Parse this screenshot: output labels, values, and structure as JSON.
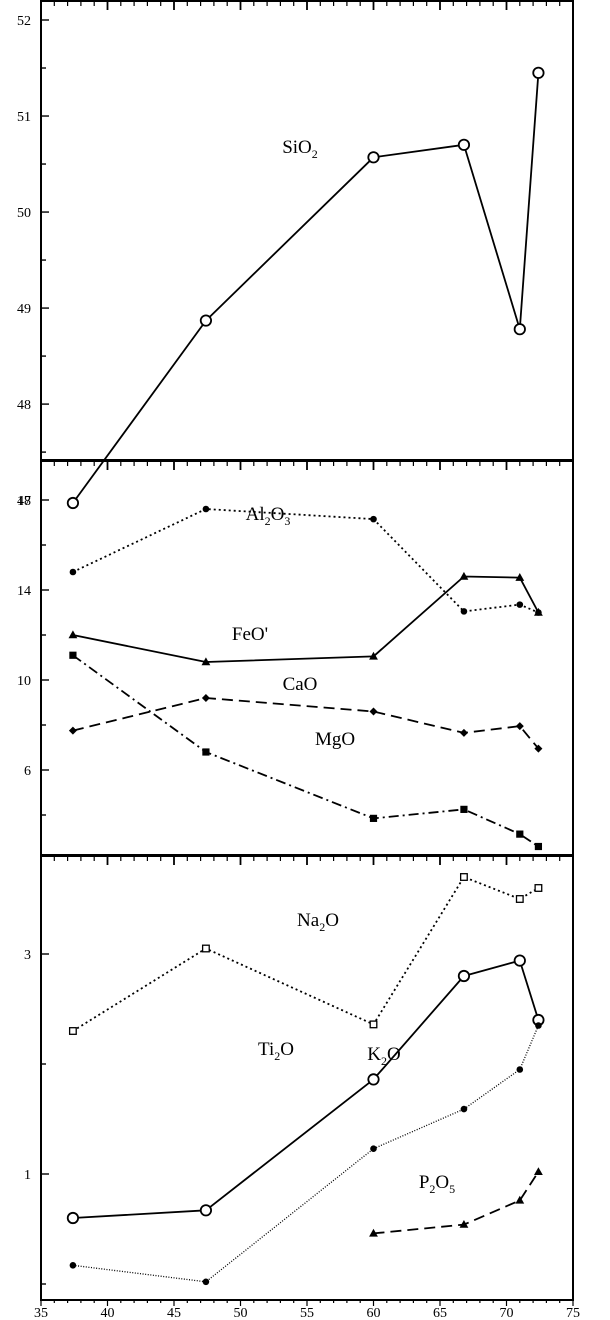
{
  "chart_data": [
    {
      "type": "line",
      "panel": "top",
      "xlim": [
        35,
        75
      ],
      "ylim": [
        46,
        52
      ],
      "yticks": [
        47,
        48,
        49,
        50,
        51,
        52
      ],
      "grid": false,
      "series": [
        {
          "name": "SiO",
          "sub": "2",
          "style": "solid",
          "marker": "open-circle",
          "x": [
            37.4,
            47.4,
            60.0,
            66.8,
            71.0,
            72.4
          ],
          "y": [
            46.97,
            48.87,
            50.57,
            50.7,
            48.78,
            51.45
          ]
        }
      ]
    },
    {
      "type": "line",
      "panel": "middle",
      "xlim": [
        35,
        75
      ],
      "ylim": [
        2.5,
        20
      ],
      "yticks": [
        6,
        10,
        14,
        18
      ],
      "grid": false,
      "series": [
        {
          "name": "Al",
          "sub": "2",
          "name2": "O",
          "sub2": "3",
          "style": "dotted",
          "marker": "filled-circle",
          "x": [
            37.4,
            47.4,
            60.0,
            66.8,
            71.0,
            72.4
          ],
          "y": [
            14.8,
            17.6,
            17.15,
            13.05,
            13.35,
            13.0
          ]
        },
        {
          "name": "FeO'",
          "style": "solid",
          "marker": "filled-triangle",
          "x": [
            37.4,
            47.4,
            60.0,
            66.8,
            71.0,
            72.4
          ],
          "y": [
            12.0,
            10.8,
            11.05,
            14.6,
            14.55,
            13.0
          ]
        },
        {
          "name": "CaO",
          "style": "dashed",
          "marker": "filled-diamond",
          "x": [
            37.4,
            47.4,
            60.0,
            66.8,
            71.0,
            72.4
          ],
          "y": [
            7.75,
            9.2,
            8.6,
            7.65,
            7.95,
            6.95
          ]
        },
        {
          "name": "MgO",
          "style": "dashdot",
          "marker": "filled-square",
          "x": [
            37.4,
            47.4,
            60.0,
            66.8,
            71.0,
            72.4
          ],
          "y": [
            11.1,
            6.8,
            3.85,
            4.25,
            3.15,
            2.6
          ]
        }
      ]
    },
    {
      "type": "line",
      "panel": "bottom",
      "xlim": [
        35,
        75
      ],
      "ylim": [
        -0.1,
        4
      ],
      "yticks": [
        1,
        3
      ],
      "xticks": [
        35,
        40,
        45,
        50,
        55,
        60,
        65,
        70,
        75
      ],
      "grid": false,
      "series": [
        {
          "name": "Na",
          "sub": "2",
          "name2": "O",
          "style": "dotted",
          "marker": "open-square",
          "x": [
            37.4,
            47.4,
            60.0,
            66.8,
            71.0,
            72.4
          ],
          "y": [
            2.3,
            3.05,
            2.36,
            3.7,
            3.5,
            3.6
          ]
        },
        {
          "name": "Ti",
          "sub": "2",
          "name2": "O",
          "style": "solid",
          "marker": "open-circle",
          "x": [
            37.4,
            47.4,
            60.0,
            66.8,
            71.0,
            72.4
          ],
          "y": [
            0.6,
            0.67,
            1.86,
            2.8,
            2.94,
            2.4
          ]
        },
        {
          "name": "K",
          "sub": "2",
          "name2": "O",
          "style": "fine-dotted",
          "marker": "filled-circle",
          "x": [
            37.4,
            47.4,
            60.0,
            66.8,
            71.0,
            72.4
          ],
          "y": [
            0.17,
            0.02,
            1.23,
            1.59,
            1.95,
            2.35
          ]
        },
        {
          "name": "P",
          "sub": "2",
          "name2": "O",
          "sub2": "5",
          "style": "dashed",
          "marker": "filled-triangle",
          "x": [
            60.0,
            66.8,
            71.0,
            72.4
          ],
          "y": [
            0.46,
            0.54,
            0.76,
            1.02
          ]
        }
      ]
    }
  ]
}
